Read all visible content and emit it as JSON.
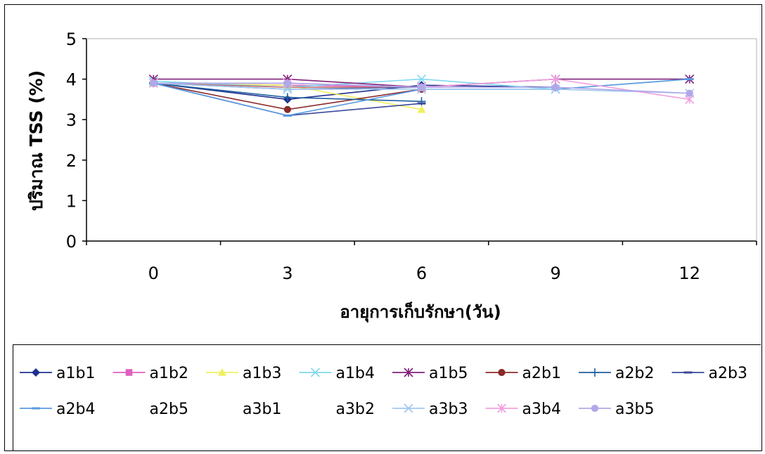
{
  "chart_data": {
    "type": "line",
    "title": "",
    "xlabel": "อายุการเก็บรักษา(วัน)",
    "ylabel": "ปริมาณ TSS (%)",
    "categories": [
      "0",
      "3",
      "6",
      "9",
      "12"
    ],
    "ylim": [
      0,
      5
    ],
    "yticks": [
      "0",
      "1",
      "2",
      "3",
      "4",
      "5"
    ],
    "grid": false,
    "legend_position": "bottom",
    "series": [
      {
        "name": "a1b1",
        "color": "#1f2f8f",
        "marker": "diamond",
        "values": [
          3.9,
          3.5,
          3.85,
          3.8,
          null
        ]
      },
      {
        "name": "a1b2",
        "color": "#e060c0",
        "marker": "square",
        "values": [
          3.9,
          3.85,
          3.8,
          null,
          null
        ]
      },
      {
        "name": "a1b3",
        "color": "#f0f060",
        "marker": "triangle",
        "values": [
          3.9,
          3.85,
          3.25,
          null,
          null
        ]
      },
      {
        "name": "a1b4",
        "color": "#80d8ef",
        "marker": "x",
        "values": [
          3.95,
          3.8,
          4.0,
          3.75,
          4.0
        ]
      },
      {
        "name": "a1b5",
        "color": "#80207a",
        "marker": "star",
        "values": [
          4.0,
          4.0,
          3.8,
          4.0,
          4.0
        ]
      },
      {
        "name": "a2b1",
        "color": "#8b2a2a",
        "marker": "circle",
        "values": [
          3.9,
          3.25,
          3.75,
          null,
          null
        ]
      },
      {
        "name": "a2b2",
        "color": "#1f5f9f",
        "marker": "plus",
        "values": [
          3.9,
          3.55,
          3.45,
          null,
          null
        ]
      },
      {
        "name": "a2b3",
        "color": "#3a4a9a",
        "marker": "dash",
        "values": [
          3.9,
          3.1,
          3.4,
          null,
          null
        ]
      },
      {
        "name": "a2b4",
        "color": "#5a9ae0",
        "marker": "dash",
        "values": [
          3.9,
          3.1,
          3.75,
          3.75,
          4.0
        ]
      },
      {
        "name": "a2b5",
        "color": "#c07070",
        "marker": "none",
        "values": [
          3.9,
          3.8,
          3.8,
          null,
          null
        ]
      },
      {
        "name": "a3b1",
        "color": "#6070b0",
        "marker": "none",
        "values": [
          3.9,
          3.75,
          3.8,
          null,
          null
        ]
      },
      {
        "name": "a3b2",
        "color": "#a080c0",
        "marker": "none",
        "values": [
          3.9,
          3.9,
          3.8,
          null,
          null
        ]
      },
      {
        "name": "a3b3",
        "color": "#a0c8f0",
        "marker": "x",
        "values": [
          3.9,
          3.75,
          3.75,
          3.75,
          3.65
        ]
      },
      {
        "name": "a3b4",
        "color": "#f0a0e0",
        "marker": "star",
        "values": [
          3.9,
          3.9,
          3.8,
          4.0,
          3.5
        ]
      },
      {
        "name": "a3b5",
        "color": "#b0a8e8",
        "marker": "circle",
        "values": [
          3.9,
          3.9,
          3.8,
          3.8,
          3.65
        ]
      }
    ]
  }
}
